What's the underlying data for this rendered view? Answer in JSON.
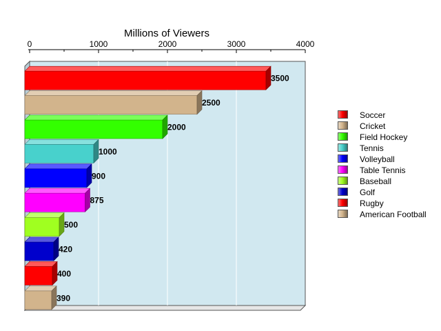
{
  "chart_data": {
    "type": "bar",
    "orientation": "horizontal",
    "title": "Millions of Viewers",
    "xlabel": "",
    "ylabel": "",
    "xlim": [
      0,
      4000
    ],
    "ticks": [
      0,
      1000,
      2000,
      3000,
      4000
    ],
    "tick_labels": [
      "0",
      "1000",
      "2000",
      "3000",
      "4000"
    ],
    "grid": true,
    "legend_position": "right",
    "categories": [
      "Soccer",
      "Cricket",
      "Field Hockey",
      "Tennis",
      "Volleyball",
      "Table Tennis",
      "Baseball",
      "Golf",
      "Rugby",
      "American Football"
    ],
    "values": [
      3500,
      2500,
      2000,
      1000,
      900,
      875,
      500,
      420,
      400,
      390
    ],
    "value_labels": [
      "3500",
      "2500",
      "2000",
      "1000",
      "900",
      "875",
      "500",
      "420",
      "400",
      "390"
    ],
    "colors": [
      "#ff0000",
      "#d2b48c",
      "#33ff00",
      "#48d1cc",
      "#0000ff",
      "#ff00ff",
      "#a0ff20",
      "#0000cc",
      "#ff0000",
      "#d2b48c"
    ]
  }
}
